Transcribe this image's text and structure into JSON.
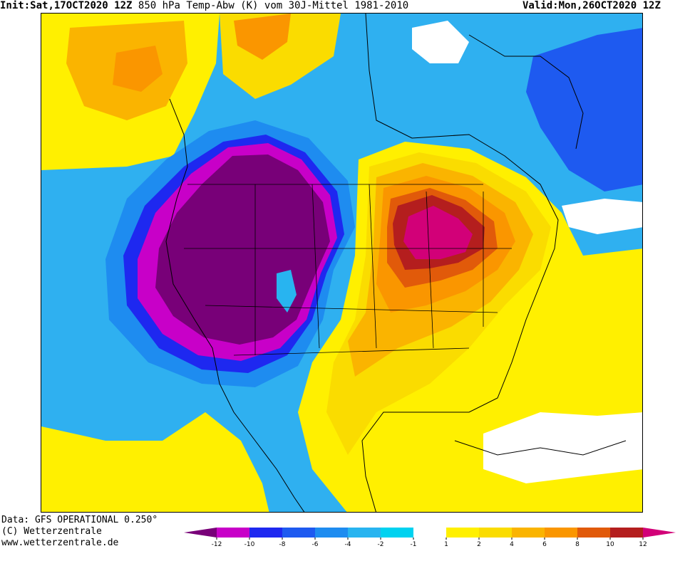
{
  "header": {
    "init_label": "Init:",
    "init_value": "Sat,17OCT2020 12Z",
    "product": "850 hPa Temp-Abw (K) vom 30J-Mittel 1981-2010",
    "valid_label": "Valid:",
    "valid_value": "Mon,26OCT2020 12Z"
  },
  "footer": {
    "data_source": "Data: GFS OPERATIONAL 0.250°",
    "copyright": "(C) Wetterzentrale",
    "website": "www.wetterzentrale.de"
  },
  "legend": {
    "bins": [
      {
        "color": "#c800c8"
      },
      {
        "color": "#1e28f0"
      },
      {
        "color": "#1e5af0"
      },
      {
        "color": "#1e8cf0"
      },
      {
        "color": "#28b4f0"
      },
      {
        "color": "#00d2f0"
      },
      {
        "color": "#ffffff"
      },
      {
        "color": "#fff000"
      },
      {
        "color": "#fadc00"
      },
      {
        "color": "#fab400"
      },
      {
        "color": "#fa9600"
      },
      {
        "color": "#e15a0a"
      },
      {
        "color": "#b41e1e"
      }
    ],
    "below_color": "#780078",
    "above_color": "#d20078",
    "tick_labels": [
      "-12",
      "-10",
      "-8",
      "-6",
      "-4",
      "-2",
      "-1",
      "1",
      "2",
      "4",
      "6",
      "8",
      "10",
      "12"
    ]
  }
}
